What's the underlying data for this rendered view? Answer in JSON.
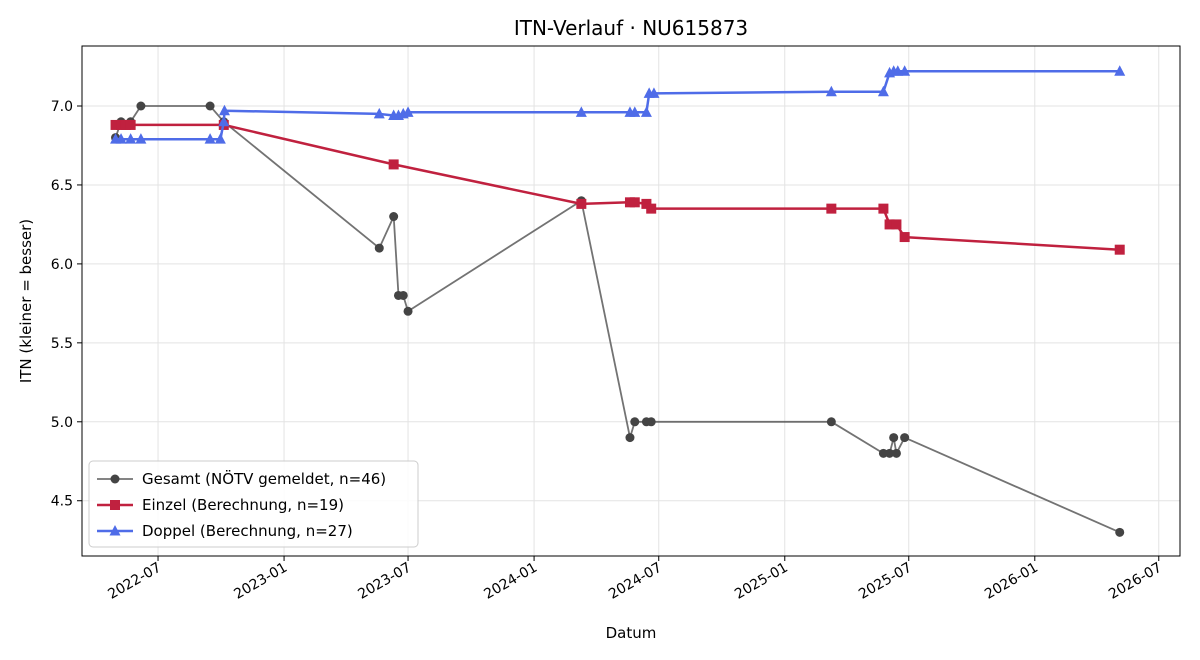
{
  "chart_data": {
    "type": "line",
    "title": "ITN-Verlauf · NU615873",
    "xlabel": "Datum",
    "ylabel": "ITN  (kleiner = besser)",
    "x_axis_type": "date",
    "xlim": [
      "2022-03-12",
      "2026-08-01"
    ],
    "ylim": [
      4.15,
      7.38
    ],
    "x_ticks": [
      "2022-07",
      "2023-01",
      "2023-07",
      "2024-01",
      "2024-07",
      "2025-01",
      "2025-07",
      "2026-01",
      "2026-07"
    ],
    "y_ticks": [
      4.5,
      5.0,
      5.5,
      6.0,
      6.5,
      7.0
    ],
    "grid": true,
    "legend_position": "lower-left",
    "series": [
      {
        "name": "Gesamt (NÖTV gemeldet, n=46)",
        "color": "#444444",
        "marker": "circle",
        "points": [
          {
            "x": "2022-04-30",
            "y": 6.8
          },
          {
            "x": "2022-05-08",
            "y": 6.9
          },
          {
            "x": "2022-05-22",
            "y": 6.9
          },
          {
            "x": "2022-06-06",
            "y": 7.0
          },
          {
            "x": "2022-09-15",
            "y": 7.0
          },
          {
            "x": "2022-10-05",
            "y": 6.9
          },
          {
            "x": "2023-05-20",
            "y": 6.1
          },
          {
            "x": "2023-06-10",
            "y": 6.3
          },
          {
            "x": "2023-06-17",
            "y": 5.8
          },
          {
            "x": "2023-06-24",
            "y": 5.8
          },
          {
            "x": "2023-07-01",
            "y": 5.7
          },
          {
            "x": "2024-03-10",
            "y": 6.4
          },
          {
            "x": "2024-05-20",
            "y": 4.9
          },
          {
            "x": "2024-05-27",
            "y": 5.0
          },
          {
            "x": "2024-06-13",
            "y": 5.0
          },
          {
            "x": "2024-06-20",
            "y": 5.0
          },
          {
            "x": "2025-03-10",
            "y": 5.0
          },
          {
            "x": "2025-05-25",
            "y": 4.8
          },
          {
            "x": "2025-06-03",
            "y": 4.8
          },
          {
            "x": "2025-06-09",
            "y": 4.9
          },
          {
            "x": "2025-06-13",
            "y": 4.8
          },
          {
            "x": "2025-06-25",
            "y": 4.9
          },
          {
            "x": "2026-05-05",
            "y": 4.3
          }
        ]
      },
      {
        "name": "Einzel (Berechnung, n=19)",
        "color": "#C0213F",
        "marker": "square",
        "points": [
          {
            "x": "2022-04-30",
            "y": 6.88
          },
          {
            "x": "2022-05-08",
            "y": 6.88
          },
          {
            "x": "2022-05-15",
            "y": 6.88
          },
          {
            "x": "2022-05-22",
            "y": 6.88
          },
          {
            "x": "2022-10-05",
            "y": 6.88
          },
          {
            "x": "2023-06-10",
            "y": 6.63
          },
          {
            "x": "2024-03-10",
            "y": 6.38
          },
          {
            "x": "2024-05-20",
            "y": 6.39
          },
          {
            "x": "2024-05-27",
            "y": 6.39
          },
          {
            "x": "2024-06-13",
            "y": 6.38
          },
          {
            "x": "2024-06-20",
            "y": 6.35
          },
          {
            "x": "2025-03-10",
            "y": 6.35
          },
          {
            "x": "2025-05-25",
            "y": 6.35
          },
          {
            "x": "2025-06-03",
            "y": 6.25
          },
          {
            "x": "2025-06-13",
            "y": 6.25
          },
          {
            "x": "2025-06-25",
            "y": 6.17
          },
          {
            "x": "2026-05-05",
            "y": 6.09
          }
        ]
      },
      {
        "name": "Doppel (Berechnung, n=27)",
        "color": "#4F6CE8",
        "marker": "triangle",
        "points": [
          {
            "x": "2022-04-30",
            "y": 6.79
          },
          {
            "x": "2022-05-08",
            "y": 6.79
          },
          {
            "x": "2022-05-22",
            "y": 6.79
          },
          {
            "x": "2022-06-06",
            "y": 6.79
          },
          {
            "x": "2022-09-15",
            "y": 6.79
          },
          {
            "x": "2022-09-30",
            "y": 6.79
          },
          {
            "x": "2022-10-05",
            "y": 6.9
          },
          {
            "x": "2022-10-06",
            "y": 6.97
          },
          {
            "x": "2023-05-20",
            "y": 6.95
          },
          {
            "x": "2023-06-10",
            "y": 6.94
          },
          {
            "x": "2023-06-17",
            "y": 6.94
          },
          {
            "x": "2023-06-24",
            "y": 6.95
          },
          {
            "x": "2023-07-01",
            "y": 6.96
          },
          {
            "x": "2024-03-10",
            "y": 6.96
          },
          {
            "x": "2024-05-20",
            "y": 6.96
          },
          {
            "x": "2024-05-27",
            "y": 6.96
          },
          {
            "x": "2024-06-13",
            "y": 6.96
          },
          {
            "x": "2024-06-17",
            "y": 7.08
          },
          {
            "x": "2024-06-24",
            "y": 7.08
          },
          {
            "x": "2025-03-10",
            "y": 7.09
          },
          {
            "x": "2025-05-25",
            "y": 7.09
          },
          {
            "x": "2025-06-03",
            "y": 7.21
          },
          {
            "x": "2025-06-09",
            "y": 7.22
          },
          {
            "x": "2025-06-15",
            "y": 7.22
          },
          {
            "x": "2025-06-25",
            "y": 7.22
          },
          {
            "x": "2026-05-05",
            "y": 7.22
          }
        ]
      }
    ]
  }
}
